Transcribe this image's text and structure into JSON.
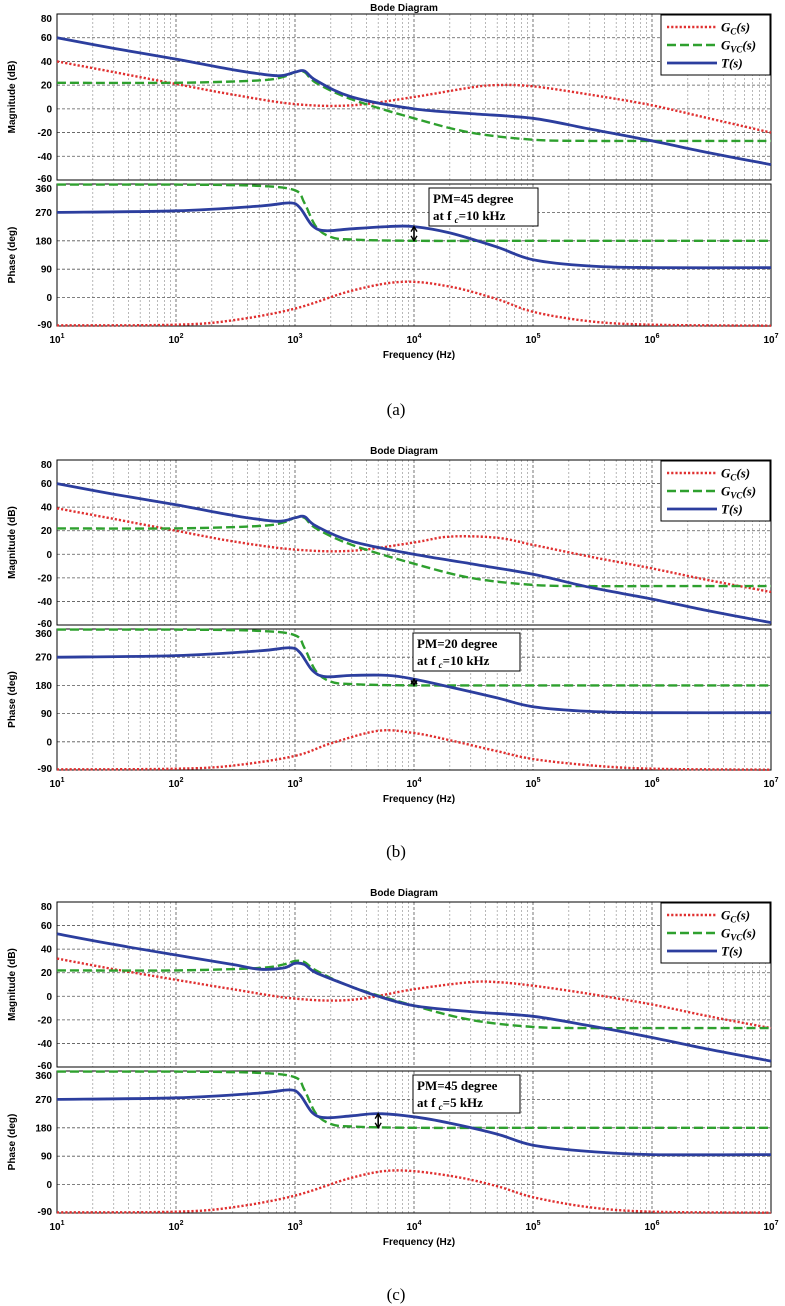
{
  "colors": {
    "Gc": "#e03030",
    "Gvc": "#2ea02e",
    "T": "#2c3e9e"
  },
  "chart_data": [
    {
      "type": "line",
      "caption": "(a)",
      "title": "Bode Diagram",
      "xlabel": "Frequency (Hz)",
      "xscale": "log",
      "xlim": [
        10,
        10000000
      ],
      "xticks": [
        "10^1",
        "10^2",
        "10^3",
        "10^4",
        "10^5",
        "10^6",
        "10^7"
      ],
      "legend": {
        "placement": "top-right",
        "entries": [
          "Gc(s)",
          "Gvc(s)",
          "T(s)"
        ]
      },
      "annotation": {
        "line1": "PM=45 degree",
        "line2a": "at f",
        "line2sub": "c",
        "line2b": "=10 kHz",
        "fc": 10000,
        "phase_low": 180,
        "phase_high": 225
      },
      "magnitude": {
        "ylabel": "Magnitude (dB)",
        "ylim": [
          -60,
          80
        ],
        "yticks": [
          80,
          60,
          40,
          20,
          0,
          -20,
          -40,
          -60
        ],
        "series": [
          {
            "name": "Gc(s)",
            "x": [
              10,
              30,
              100,
              300,
              1000,
              3000,
              10000,
              30000,
              50000,
              100000,
              300000,
              1000000,
              3000000,
              10000000
            ],
            "values": [
              40,
              31,
              21,
              12,
              4,
              3,
              10,
              18,
              20,
              19,
              12,
              3,
              -8,
              -20
            ]
          },
          {
            "name": "Gvc(s)",
            "x": [
              10,
              100,
              500,
              800,
              1000,
              1200,
              1500,
              3000,
              10000,
              30000,
              100000,
              300000,
              1000000,
              10000000
            ],
            "values": [
              22,
              22,
              24,
              27,
              31,
              31,
              22,
              8,
              -8,
              -20,
              -26,
              -27,
              -27,
              -27
            ]
          },
          {
            "name": "T(s)",
            "x": [
              10,
              30,
              100,
              300,
              700,
              1000,
              1200,
              1500,
              3000,
              10000,
              30000,
              100000,
              300000,
              1000000,
              3000000,
              10000000
            ],
            "values": [
              60,
              51,
              42,
              33,
              28,
              31,
              32,
              24,
              10,
              0,
              -4,
              -8,
              -17,
              -27,
              -37,
              -47
            ]
          }
        ]
      },
      "phase": {
        "ylabel": "Phase (deg)",
        "ylim": [
          -90,
          360
        ],
        "yticks": [
          360,
          270,
          180,
          90,
          0,
          -90
        ],
        "series": [
          {
            "name": "Gc(s)",
            "x": [
              10,
              100,
              300,
              1000,
              3000,
              8000,
              20000,
              50000,
              100000,
              300000,
              1000000,
              10000000
            ],
            "values": [
              -88,
              -86,
              -72,
              -35,
              22,
              50,
              35,
              -5,
              -45,
              -75,
              -86,
              -89
            ]
          },
          {
            "name": "Gvc(s)",
            "x": [
              10,
              100,
              500,
              1000,
              1200,
              1500,
              2000,
              3000,
              10000,
              100000,
              10000000
            ],
            "values": [
              358,
              358,
              354,
              340,
              300,
              225,
              192,
              184,
              180,
              180,
              180
            ]
          },
          {
            "name": "T(s)",
            "x": [
              10,
              100,
              500,
              900,
              1100,
              1400,
              1800,
              3000,
              6000,
              10000,
              20000,
              50000,
              100000,
              300000,
              1000000,
              10000000
            ],
            "values": [
              270,
              275,
              290,
              300,
              285,
              228,
              212,
              218,
              225,
              225,
              205,
              160,
              120,
              100,
              95,
              95
            ]
          }
        ]
      }
    },
    {
      "type": "line",
      "caption": "(b)",
      "title": "Bode Diagram",
      "xlabel": "Frequency (Hz)",
      "xscale": "log",
      "xlim": [
        10,
        10000000
      ],
      "xticks": [
        "10^1",
        "10^2",
        "10^3",
        "10^4",
        "10^5",
        "10^6",
        "10^7"
      ],
      "legend": {
        "placement": "top-right",
        "entries": [
          "Gc(s)",
          "Gvc(s)",
          "T(s)"
        ]
      },
      "annotation": {
        "line1": "PM=20 degree",
        "line2a": "at f",
        "line2sub": "c",
        "line2b": "=10 kHz",
        "fc": 10000,
        "phase_low": 180,
        "phase_high": 200
      },
      "magnitude": {
        "ylabel": "Magnitude (dB)",
        "ylim": [
          -60,
          80
        ],
        "yticks": [
          80,
          60,
          40,
          20,
          0,
          -20,
          -40,
          -60
        ],
        "series": [
          {
            "name": "Gc(s)",
            "x": [
              10,
              30,
              100,
              300,
              1000,
              3000,
              10000,
              20000,
              50000,
              100000,
              300000,
              1000000,
              3000000,
              10000000
            ],
            "values": [
              39,
              30,
              20,
              11,
              4,
              3,
              10,
              15,
              14,
              8,
              -2,
              -12,
              -22,
              -32
            ]
          },
          {
            "name": "Gvc(s)",
            "x": [
              10,
              100,
              500,
              800,
              1000,
              1200,
              1500,
              3000,
              10000,
              30000,
              100000,
              300000,
              1000000,
              10000000
            ],
            "values": [
              22,
              22,
              24,
              27,
              31,
              31,
              22,
              8,
              -8,
              -20,
              -26,
              -27,
              -27,
              -27
            ]
          },
          {
            "name": "T(s)",
            "x": [
              10,
              30,
              100,
              300,
              700,
              1000,
              1200,
              1500,
              3000,
              10000,
              30000,
              100000,
              300000,
              1000000,
              3000000,
              10000000
            ],
            "values": [
              60,
              51,
              42,
              33,
              28,
              31,
              32,
              24,
              11,
              0,
              -8,
              -17,
              -28,
              -38,
              -48,
              -58
            ]
          }
        ]
      },
      "phase": {
        "ylabel": "Phase (deg)",
        "ylim": [
          -90,
          360
        ],
        "yticks": [
          360,
          270,
          180,
          90,
          0,
          -90
        ],
        "series": [
          {
            "name": "Gc(s)",
            "x": [
              10,
              100,
              300,
              1000,
              2000,
              5000,
              10000,
              20000,
              50000,
              100000,
              300000,
              1000000,
              10000000
            ],
            "values": [
              -88,
              -86,
              -76,
              -45,
              -5,
              35,
              28,
              5,
              -30,
              -55,
              -75,
              -86,
              -89
            ]
          },
          {
            "name": "Gvc(s)",
            "x": [
              10,
              100,
              500,
              1000,
              1200,
              1500,
              2000,
              3000,
              10000,
              100000,
              10000000
            ],
            "values": [
              358,
              358,
              354,
              340,
              300,
              225,
              192,
              184,
              180,
              180,
              180
            ]
          },
          {
            "name": "T(s)",
            "x": [
              10,
              100,
              500,
              900,
              1100,
              1400,
              1800,
              3000,
              6000,
              10000,
              20000,
              50000,
              100000,
              300000,
              1000000,
              10000000
            ],
            "values": [
              270,
              275,
              290,
              300,
              285,
              228,
              208,
              212,
              212,
              200,
              175,
              140,
              112,
              97,
              93,
              93
            ]
          }
        ]
      }
    },
    {
      "type": "line",
      "caption": "(c)",
      "title": "Bode Diagram",
      "xlabel": "Frequency (Hz)",
      "xscale": "log",
      "xlim": [
        10,
        10000000
      ],
      "xticks": [
        "10^1",
        "10^2",
        "10^3",
        "10^4",
        "10^5",
        "10^6",
        "10^7"
      ],
      "legend": {
        "placement": "top-right",
        "entries": [
          "Gc(s)",
          "Gvc(s)",
          "T(s)"
        ]
      },
      "annotation": {
        "line1": "PM=45 degree",
        "line2a": "at f",
        "line2sub": "c",
        "line2b": "=5 kHz",
        "fc": 5000,
        "phase_low": 180,
        "phase_high": 225
      },
      "magnitude": {
        "ylabel": "Magnitude (dB)",
        "ylim": [
          -60,
          80
        ],
        "yticks": [
          80,
          60,
          40,
          20,
          0,
          -20,
          -40,
          -60
        ],
        "series": [
          {
            "name": "Gc(s)",
            "x": [
              10,
              30,
              100,
              300,
              1000,
              3000,
              10000,
              30000,
              50000,
              100000,
              300000,
              1000000,
              3000000,
              10000000
            ],
            "values": [
              32,
              23,
              14,
              6,
              -2,
              -3,
              6,
              12,
              12,
              9,
              2,
              -7,
              -17,
              -27
            ]
          },
          {
            "name": "Gvc(s)",
            "x": [
              10,
              100,
              500,
              800,
              1000,
              1200,
              1500,
              3000,
              10000,
              30000,
              100000,
              300000,
              1000000,
              10000000
            ],
            "values": [
              22,
              22,
              24,
              27,
              30,
              29,
              22,
              8,
              -8,
              -20,
              -26,
              -27,
              -27,
              -27
            ]
          },
          {
            "name": "T(s)",
            "x": [
              10,
              30,
              100,
              300,
              500,
              800,
              1000,
              1200,
              1500,
              3000,
              5000,
              10000,
              30000,
              100000,
              300000,
              1000000,
              3000000,
              10000000
            ],
            "values": [
              53,
              44,
              35,
              27,
              23,
              24,
              28,
              27,
              20,
              8,
              0,
              -8,
              -13,
              -17,
              -25,
              -35,
              -45,
              -55
            ]
          }
        ]
      },
      "phase": {
        "ylabel": "Phase (deg)",
        "ylim": [
          -90,
          360
        ],
        "yticks": [
          360,
          270,
          180,
          90,
          0,
          -90
        ],
        "series": [
          {
            "name": "Gc(s)",
            "x": [
              10,
              100,
              300,
              1000,
              3000,
              7000,
              20000,
              50000,
              100000,
              300000,
              1000000,
              10000000
            ],
            "values": [
              -88,
              -86,
              -72,
              -35,
              22,
              45,
              28,
              -5,
              -40,
              -72,
              -86,
              -89
            ]
          },
          {
            "name": "Gvc(s)",
            "x": [
              10,
              100,
              500,
              1000,
              1200,
              1500,
              2000,
              3000,
              10000,
              100000,
              10000000
            ],
            "values": [
              358,
              358,
              354,
              340,
              300,
              225,
              192,
              184,
              180,
              180,
              180
            ]
          },
          {
            "name": "T(s)",
            "x": [
              10,
              100,
              500,
              900,
              1100,
              1400,
              1800,
              3000,
              5000,
              10000,
              20000,
              50000,
              100000,
              300000,
              1000000,
              10000000
            ],
            "values": [
              270,
              275,
              290,
              300,
              285,
              228,
              212,
              218,
              225,
              215,
              195,
              160,
              125,
              105,
              95,
              95
            ]
          }
        ]
      }
    }
  ]
}
